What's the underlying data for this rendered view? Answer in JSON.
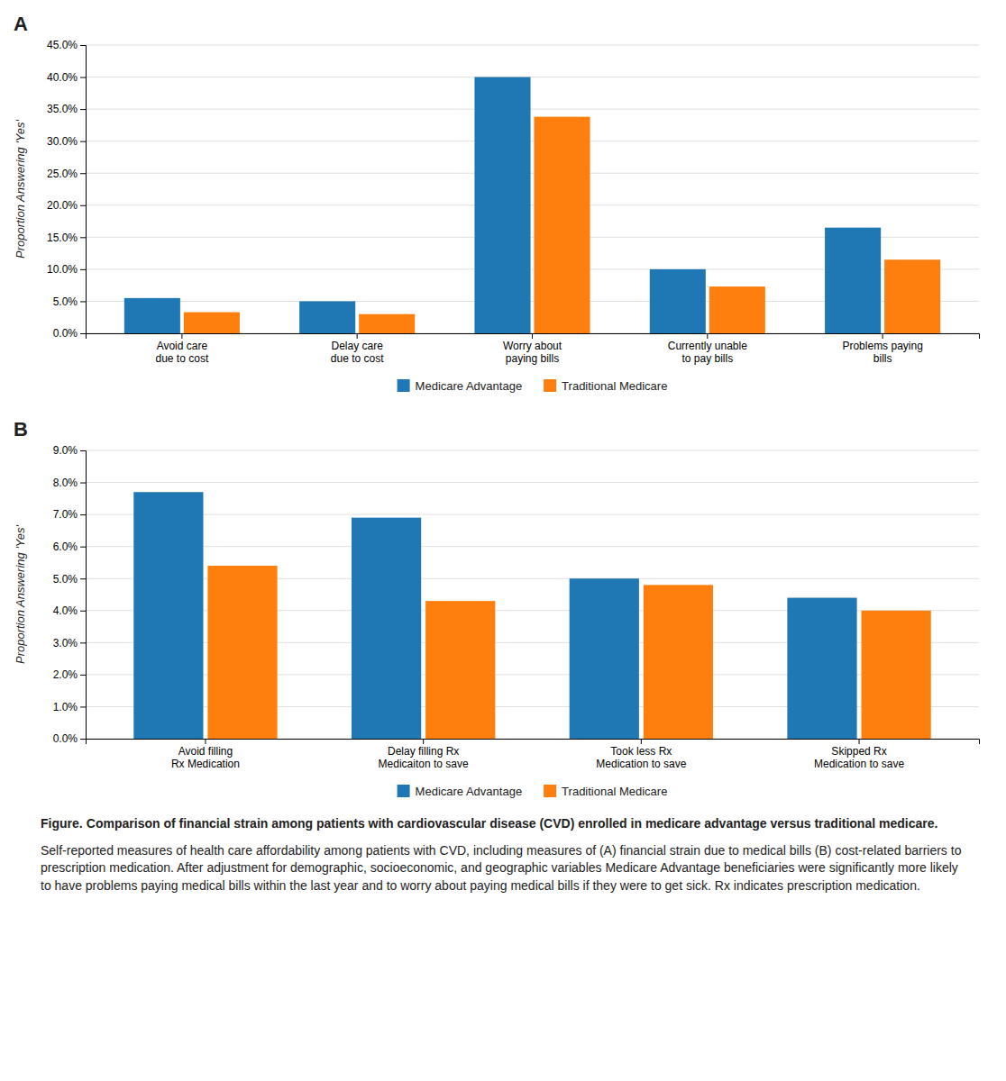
{
  "chart_data": [
    {
      "type": "bar",
      "title": "A",
      "categories": [
        "Avoid care\ndue to cost",
        "Delay care\ndue to cost",
        "Worry about\npaying bills",
        "Currently unable\nto pay bills",
        "Problems paying\nbills"
      ],
      "series": [
        {
          "name": "Medicare Advantage",
          "values": [
            0.055,
            0.05,
            0.4,
            0.1,
            0.165
          ]
        },
        {
          "name": "Traditional Medicare",
          "values": [
            0.033,
            0.03,
            0.338,
            0.073,
            0.115
          ]
        }
      ],
      "ylim": [
        0,
        0.45
      ],
      "yticks": [
        {
          "value": 0.0,
          "label": "0.0%"
        },
        {
          "value": 0.05,
          "label": "5.0%"
        },
        {
          "value": 0.1,
          "label": "10.0%"
        },
        {
          "value": 0.15,
          "label": "15.0%"
        },
        {
          "value": 0.2,
          "label": "20.0%"
        },
        {
          "value": 0.25,
          "label": "25.0%"
        },
        {
          "value": 0.3,
          "label": "30.0%"
        },
        {
          "value": 0.35,
          "label": "35.0%"
        },
        {
          "value": 0.4,
          "label": "40.0%"
        },
        {
          "value": 0.45,
          "label": "45.0%"
        }
      ],
      "y_label": "Proportion Answering 'Yes'",
      "grid": true,
      "legend": "bottom"
    },
    {
      "type": "bar",
      "title": "B",
      "categories": [
        "Avoid filling\nRx Medication",
        "Delay filling Rx\nMedicaiton to save",
        "Took less Rx\nMedication to save",
        "Skipped Rx\nMedication to save"
      ],
      "series": [
        {
          "name": "Medicare Advantage",
          "values": [
            0.077,
            0.069,
            0.05,
            0.044
          ]
        },
        {
          "name": "Traditional Medicare",
          "values": [
            0.054,
            0.043,
            0.048,
            0.04
          ]
        }
      ],
      "ylim": [
        0,
        0.09
      ],
      "yticks": [
        {
          "value": 0.0,
          "label": "0.0%"
        },
        {
          "value": 0.01,
          "label": "1.0%"
        },
        {
          "value": 0.02,
          "label": "2.0%"
        },
        {
          "value": 0.03,
          "label": "3.0%"
        },
        {
          "value": 0.04,
          "label": "4.0%"
        },
        {
          "value": 0.05,
          "label": "5.0%"
        },
        {
          "value": 0.06,
          "label": "6.0%"
        },
        {
          "value": 0.07,
          "label": "7.0%"
        },
        {
          "value": 0.08,
          "label": "8.0%"
        },
        {
          "value": 0.09,
          "label": "9.0%"
        }
      ],
      "y_label": "Proportion Answering 'Yes'",
      "grid": true,
      "legend": "bottom",
      "annotations": [
        "Figure.",
        "Comparison of financial strain among patients with cardiovascular disease (CVD) enrolled in medicare advantage versus traditional medicare.",
        "Self-reported measures of health care affordability among patients with CVD, including measures of (A) financial strain due to medical bills (B) cost-related barriers to prescription medication. After adjustment for demographic, socioeconomic, and geographic variables Medicare Advantage beneficiaries were significantly more likely to have problems paying medical bills within the last year and to worry about paying medical bills if they were to get sick. Rx indicates prescription medication."
      ]
    }
  ]
}
